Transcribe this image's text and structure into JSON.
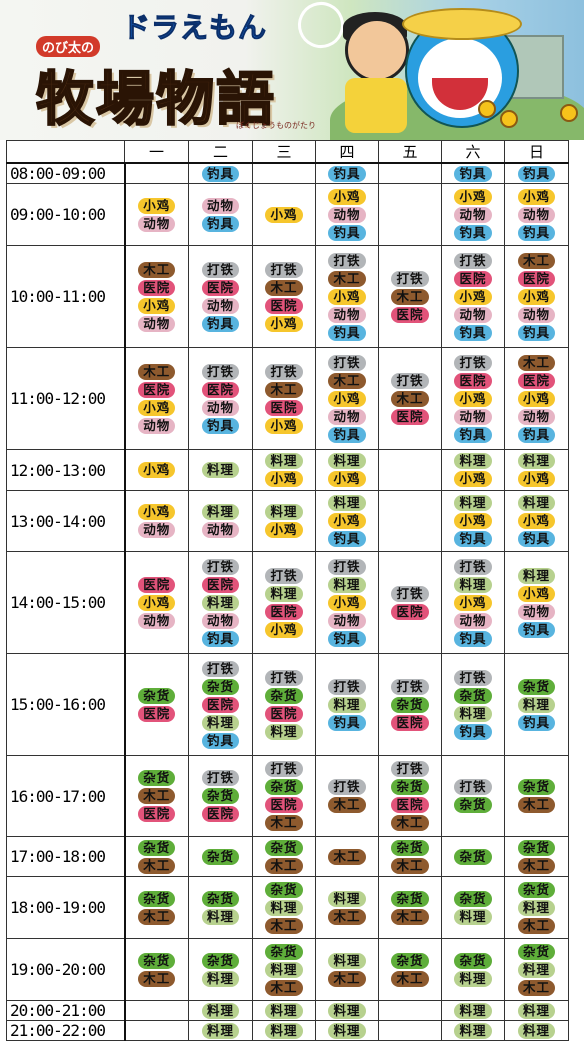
{
  "banner": {
    "logo_top": "ドラえもん",
    "badge": "のび太の",
    "title": "牧場物語",
    "subtitle": "ぼくじょうものがたり"
  },
  "colors": {
    "钓具": "#58b4df",
    "小鸡": "#f6c62c",
    "动物": "#e6b4c4",
    "木工": "#8e5a2e",
    "医院": "#e2537a",
    "打铁": "#b2b5b8",
    "料理": "#b7d18e",
    "杂货": "#5fae3a"
  },
  "headers": [
    "一",
    "二",
    "三",
    "四",
    "五",
    "六",
    "日"
  ],
  "rows": [
    {
      "time": "08:00-09:00",
      "h": 18,
      "cells": [
        [],
        [
          "钓具"
        ],
        [],
        [
          "钓具"
        ],
        [],
        [
          "钓具"
        ],
        [
          "钓具"
        ]
      ]
    },
    {
      "time": "09:00-10:00",
      "h": 62,
      "cells": [
        [
          "小鸡",
          "动物"
        ],
        [
          "动物",
          "钓具"
        ],
        [
          "小鸡"
        ],
        [
          "小鸡",
          "动物",
          "钓具"
        ],
        [],
        [
          "小鸡",
          "动物",
          "钓具"
        ],
        [
          "小鸡",
          "动物",
          "钓具"
        ]
      ]
    },
    {
      "time": "10:00-11:00",
      "h": 102,
      "cells": [
        [
          "木工",
          "医院",
          "小鸡",
          "动物"
        ],
        [
          "打铁",
          "医院",
          "动物",
          "钓具"
        ],
        [
          "打铁",
          "木工",
          "医院",
          "小鸡"
        ],
        [
          "打铁",
          "木工",
          "小鸡",
          "动物",
          "钓具"
        ],
        [
          "打铁",
          "木工",
          "医院"
        ],
        [
          "打铁",
          "医院",
          "小鸡",
          "动物",
          "钓具"
        ],
        [
          "木工",
          "医院",
          "小鸡",
          "动物",
          "钓具"
        ]
      ]
    },
    {
      "time": "11:00-12:00",
      "h": 102,
      "cells": [
        [
          "木工",
          "医院",
          "小鸡",
          "动物"
        ],
        [
          "打铁",
          "医院",
          "动物",
          "钓具"
        ],
        [
          "打铁",
          "木工",
          "医院",
          "小鸡"
        ],
        [
          "打铁",
          "木工",
          "小鸡",
          "动物",
          "钓具"
        ],
        [
          "打铁",
          "木工",
          "医院"
        ],
        [
          "打铁",
          "医院",
          "小鸡",
          "动物",
          "钓具"
        ],
        [
          "木工",
          "医院",
          "小鸡",
          "动物",
          "钓具"
        ]
      ]
    },
    {
      "time": "12:00-13:00",
      "h": 41,
      "cells": [
        [
          "小鸡"
        ],
        [
          "料理"
        ],
        [
          "料理",
          "小鸡"
        ],
        [
          "料理",
          "小鸡"
        ],
        [],
        [
          "料理",
          "小鸡"
        ],
        [
          "料理",
          "小鸡"
        ]
      ]
    },
    {
      "time": "13:00-14:00",
      "h": 61,
      "cells": [
        [
          "小鸡",
          "动物"
        ],
        [
          "料理",
          "动物"
        ],
        [
          "料理",
          "小鸡"
        ],
        [
          "料理",
          "小鸡",
          "钓具"
        ],
        [],
        [
          "料理",
          "小鸡",
          "钓具"
        ],
        [
          "料理",
          "小鸡",
          "钓具"
        ]
      ]
    },
    {
      "time": "14:00-15:00",
      "h": 102,
      "cells": [
        [
          "医院",
          "小鸡",
          "动物"
        ],
        [
          "打铁",
          "医院",
          "料理",
          "动物",
          "钓具"
        ],
        [
          "打铁",
          "料理",
          "医院",
          "小鸡"
        ],
        [
          "打铁",
          "料理",
          "小鸡",
          "动物",
          "钓具"
        ],
        [
          "打铁",
          "医院"
        ],
        [
          "打铁",
          "料理",
          "小鸡",
          "动物",
          "钓具"
        ],
        [
          "料理",
          "小鸡",
          "动物",
          "钓具"
        ]
      ]
    },
    {
      "time": "15:00-16:00",
      "h": 102,
      "cells": [
        [
          "杂货",
          "医院"
        ],
        [
          "打铁",
          "杂货",
          "医院",
          "料理",
          "钓具"
        ],
        [
          "打铁",
          "杂货",
          "医院",
          "料理"
        ],
        [
          "打铁",
          "料理",
          "钓具"
        ],
        [
          "打铁",
          "杂货",
          "医院"
        ],
        [
          "打铁",
          "杂货",
          "料理",
          "钓具"
        ],
        [
          "杂货",
          "料理",
          "钓具"
        ]
      ]
    },
    {
      "time": "16:00-17:00",
      "h": 81,
      "cells": [
        [
          "杂货",
          "木工",
          "医院"
        ],
        [
          "打铁",
          "杂货",
          "医院"
        ],
        [
          "打铁",
          "杂货",
          "医院",
          "木工"
        ],
        [
          "打铁",
          "木工"
        ],
        [
          "打铁",
          "杂货",
          "医院",
          "木工"
        ],
        [
          "打铁",
          "杂货"
        ],
        [
          "杂货",
          "木工"
        ]
      ]
    },
    {
      "time": "17:00-18:00",
      "h": 40,
      "cells": [
        [
          "杂货",
          "木工"
        ],
        [
          "杂货"
        ],
        [
          "杂货",
          "木工"
        ],
        [
          "木工"
        ],
        [
          "杂货",
          "木工"
        ],
        [
          "杂货"
        ],
        [
          "杂货",
          "木工"
        ]
      ]
    },
    {
      "time": "18:00-19:00",
      "h": 62,
      "cells": [
        [
          "杂货",
          "木工"
        ],
        [
          "杂货",
          "料理"
        ],
        [
          "杂货",
          "料理",
          "木工"
        ],
        [
          "料理",
          "木工"
        ],
        [
          "杂货",
          "木工"
        ],
        [
          "杂货",
          "料理"
        ],
        [
          "杂货",
          "料理",
          "木工"
        ]
      ]
    },
    {
      "time": "19:00-20:00",
      "h": 62,
      "cells": [
        [
          "杂货",
          "木工"
        ],
        [
          "杂货",
          "料理"
        ],
        [
          "杂货",
          "料理",
          "木工"
        ],
        [
          "料理",
          "木工"
        ],
        [
          "杂货",
          "木工"
        ],
        [
          "杂货",
          "料理"
        ],
        [
          "杂货",
          "料理",
          "木工"
        ]
      ]
    },
    {
      "time": "20:00-21:00",
      "h": 19,
      "cells": [
        [],
        [
          "料理"
        ],
        [
          "料理"
        ],
        [
          "料理"
        ],
        [],
        [
          "料理"
        ],
        [
          "料理"
        ]
      ]
    },
    {
      "time": "21:00-22:00",
      "h": 19,
      "cells": [
        [],
        [
          "料理"
        ],
        [
          "料理"
        ],
        [
          "料理"
        ],
        [],
        [
          "料理"
        ],
        [
          "料理"
        ]
      ]
    }
  ]
}
